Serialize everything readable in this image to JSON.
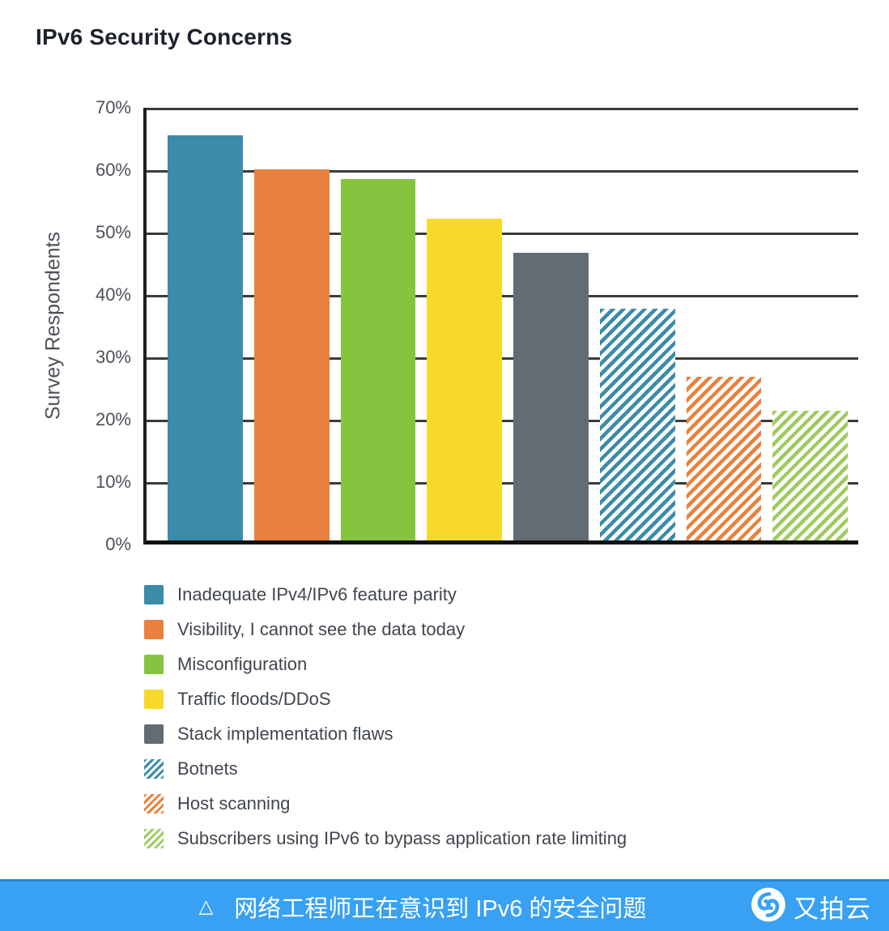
{
  "title": "IPv6 Security Concerns",
  "chart_data": {
    "type": "bar",
    "title": "IPv6 Security Concerns",
    "xlabel": "",
    "ylabel": "Survey Respondents",
    "ylim": [
      0,
      70
    ],
    "ytick_labels": [
      "70%",
      "60%",
      "50%",
      "40%",
      "30%",
      "20%",
      "10%",
      "0%"
    ],
    "grid": true,
    "legend_position": "bottom",
    "categories": [
      "Inadequate IPv4/IPv6 feature parity",
      "Visibility, I cannot see the data today",
      "Misconfiguration",
      "Traffic floods/DDoS",
      "Stack implementation flaws",
      "Botnets",
      "Host scanning",
      "Subscribers using IPv6 to bypass application rate limiting"
    ],
    "values": [
      65.5,
      60,
      58.5,
      52,
      46.5,
      37.5,
      26.5,
      21
    ],
    "bars": [
      {
        "label": "Inadequate IPv4/IPv6 feature parity",
        "value": 65.5,
        "color": "#3a8ca8",
        "pattern": "solid"
      },
      {
        "label": "Visibility, I cannot see the data today",
        "value": 60,
        "color": "#e8813e",
        "pattern": "solid"
      },
      {
        "label": "Misconfiguration",
        "value": 58.5,
        "color": "#86c440",
        "pattern": "solid"
      },
      {
        "label": "Traffic floods/DDoS",
        "value": 52,
        "color": "#f6d92a",
        "pattern": "solid"
      },
      {
        "label": "Stack implementation flaws",
        "value": 46.5,
        "color": "#636c72",
        "pattern": "solid"
      },
      {
        "label": "Botnets",
        "value": 37.5,
        "color": "#3a8ca8",
        "pattern": "hatch"
      },
      {
        "label": "Host scanning",
        "value": 26.5,
        "color": "#e8813e",
        "pattern": "hatch"
      },
      {
        "label": "Subscribers using IPv6 to bypass application rate limiting",
        "value": 21,
        "color": "#9ecb5f",
        "pattern": "hatch"
      }
    ]
  },
  "colors": {
    "axis": "#1f1f1f",
    "gridline": "#3b3b3b",
    "footer_background": "#38a1f3",
    "hatch_background": "#ffffff"
  },
  "footer": {
    "marker": "△",
    "caption": "网络工程师正在意识到 IPv6 的安全问题",
    "brand": "又拍云",
    "logo": "upyun-logo"
  }
}
